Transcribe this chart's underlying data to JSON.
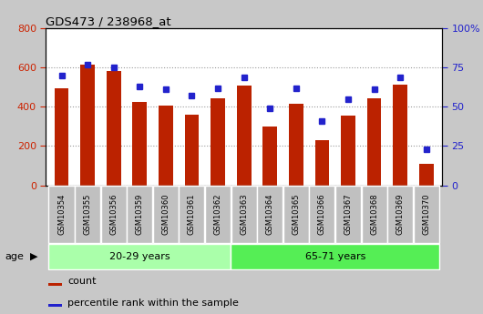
{
  "title": "GDS473 / 238968_at",
  "samples": [
    "GSM10354",
    "GSM10355",
    "GSM10356",
    "GSM10359",
    "GSM10360",
    "GSM10361",
    "GSM10362",
    "GSM10363",
    "GSM10364",
    "GSM10365",
    "GSM10366",
    "GSM10367",
    "GSM10368",
    "GSM10369",
    "GSM10370"
  ],
  "counts": [
    495,
    615,
    580,
    425,
    405,
    360,
    445,
    510,
    300,
    415,
    228,
    355,
    445,
    515,
    108
  ],
  "percentile_ranks": [
    70,
    77,
    75,
    63,
    61,
    57,
    62,
    69,
    49,
    62,
    41,
    55,
    61,
    69,
    23
  ],
  "bar_color": "#BB2200",
  "marker_color": "#2222CC",
  "ylim_left": [
    0,
    800
  ],
  "ylim_right": [
    0,
    100
  ],
  "yticks_left": [
    0,
    200,
    400,
    600,
    800
  ],
  "yticks_right": [
    0,
    25,
    50,
    75,
    100
  ],
  "groups": [
    {
      "label": "20-29 years",
      "start": 0,
      "end": 7,
      "color": "#AAFFAA"
    },
    {
      "label": "65-71 years",
      "start": 7,
      "end": 15,
      "color": "#55EE55"
    }
  ],
  "age_label": "age",
  "legend_count": "count",
  "legend_pct": "percentile rank within the sample",
  "background_color": "#C8C8C8",
  "plot_bg_color": "#FFFFFF",
  "label_box_color": "#C0C0C0",
  "tick_color_left": "#CC2200",
  "tick_color_right": "#2222CC"
}
